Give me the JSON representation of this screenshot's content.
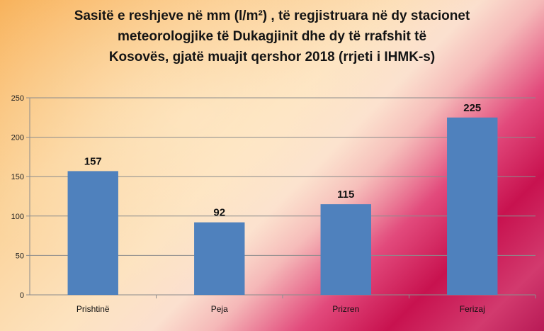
{
  "chart_data": {
    "type": "bar",
    "title_lines": [
      "Sasitë e reshjeve në mm (l/m²) , të regjistruara në dy stacionet",
      "meteorologjike  të Dukagjinit dhe dy të rrafshit të",
      "Kosovës, gjatë muajit qershor 2018 (rrjeti i IHMK-s)"
    ],
    "categories": [
      "Prishtinë",
      "Peja",
      "Prizren",
      "Ferizaj"
    ],
    "values": [
      157,
      92,
      115,
      225
    ],
    "ylim": [
      0,
      250
    ],
    "yticks": [
      "0",
      "50",
      "100",
      "150",
      "200",
      "250"
    ],
    "grid": true,
    "bar_color": "#4f81bd"
  }
}
